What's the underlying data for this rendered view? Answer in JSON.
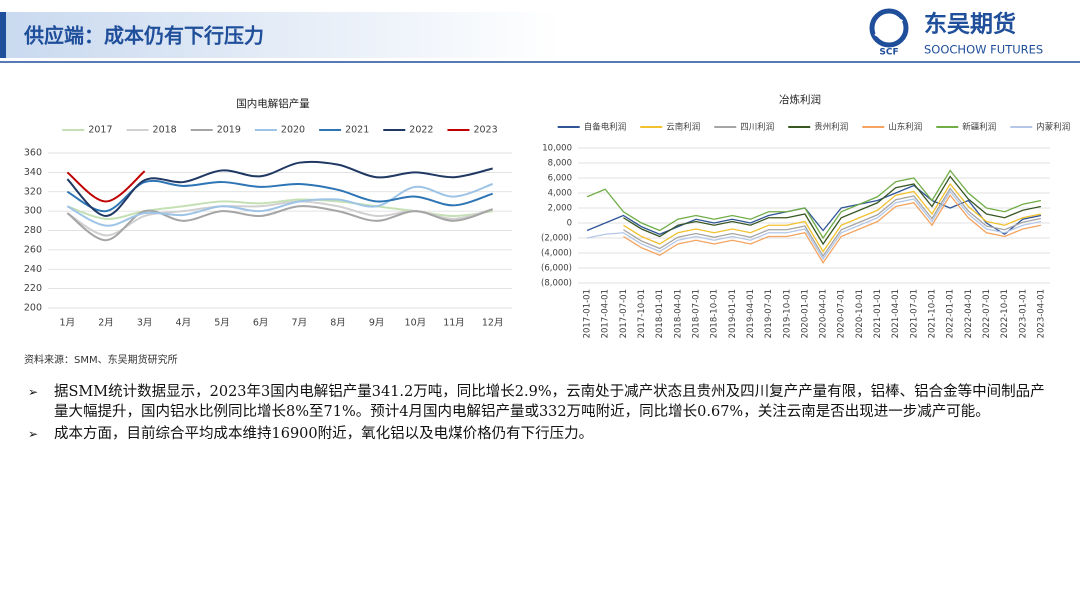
{
  "header": {
    "title": "供应端：成本仍有下行压力",
    "logo_cn": "东吴期货",
    "logo_en": "SOOCHOW FUTURES",
    "logo_mark": "SCF"
  },
  "chart_data": [
    {
      "type": "line",
      "title": "国内电解铝产量",
      "smooth": true,
      "grid": true,
      "legend": "top",
      "categories": [
        "1月",
        "2月",
        "3月",
        "4月",
        "5月",
        "6月",
        "7月",
        "8月",
        "9月",
        "10月",
        "11月",
        "12月"
      ],
      "ylim": [
        200,
        360
      ],
      "yticks": [
        200,
        220,
        240,
        260,
        280,
        300,
        320,
        340,
        360
      ],
      "series": [
        {
          "name": "2017",
          "color": "#c5e0b4",
          "values": [
            305,
            292,
            300,
            305,
            310,
            308,
            312,
            310,
            305,
            300,
            295,
            300
          ]
        },
        {
          "name": "2018",
          "color": "#d0d0d0",
          "values": [
            298,
            275,
            295,
            300,
            305,
            305,
            310,
            305,
            295,
            300,
            292,
            302
          ]
        },
        {
          "name": "2019",
          "color": "#a5a5a5",
          "values": [
            298,
            270,
            300,
            290,
            300,
            295,
            305,
            300,
            290,
            300,
            290,
            302
          ]
        },
        {
          "name": "2020",
          "color": "#9dc3e6",
          "values": [
            305,
            285,
            298,
            296,
            305,
            300,
            310,
            312,
            305,
            325,
            315,
            328
          ]
        },
        {
          "name": "2021",
          "color": "#2e75b6",
          "values": [
            320,
            300,
            330,
            326,
            330,
            325,
            328,
            322,
            310,
            315,
            306,
            318
          ]
        },
        {
          "name": "2022",
          "color": "#203864",
          "values": [
            333,
            295,
            332,
            330,
            342,
            336,
            350,
            348,
            335,
            340,
            335,
            344
          ]
        },
        {
          "name": "2023",
          "color": "#c00000",
          "values": [
            340,
            310,
            341.2,
            null,
            null,
            null,
            null,
            null,
            null,
            null,
            null,
            null
          ]
        }
      ]
    },
    {
      "type": "line",
      "title": "冶炼利润",
      "smooth": false,
      "grid": true,
      "legend": "top",
      "categories": [
        "2017-01-01",
        "2017-04-01",
        "2017-07-01",
        "2017-10-01",
        "2018-01-01",
        "2018-04-01",
        "2018-07-01",
        "2018-10-01",
        "2019-01-01",
        "2019-04-01",
        "2019-07-01",
        "2019-10-01",
        "2020-01-01",
        "2020-04-01",
        "2020-07-01",
        "2020-10-01",
        "2021-01-01",
        "2021-04-01",
        "2021-07-01",
        "2021-10-01",
        "2022-01-01",
        "2022-04-01",
        "2022-07-01",
        "2022-10-01",
        "2023-01-01",
        "2023-04-01"
      ],
      "ylim": [
        -8000,
        10000
      ],
      "yticks": [
        {
          "value": -8000,
          "label": "(8,000)"
        },
        {
          "value": -6000,
          "label": "(6,000)"
        },
        {
          "value": -4000,
          "label": "(4,000)"
        },
        {
          "value": -2000,
          "label": "(2,000)"
        },
        0,
        {
          "value": 2000,
          "label": "2,000"
        },
        {
          "value": 4000,
          "label": "4,000"
        },
        {
          "value": 6000,
          "label": "6,000"
        },
        {
          "value": 8000,
          "label": "8,000"
        },
        {
          "value": 10000,
          "label": "10,000"
        }
      ],
      "series": [
        {
          "name": "自备电利润",
          "color": "#2f5597",
          "values": [
            -1000,
            0,
            1000,
            -500,
            -1500,
            -500,
            500,
            0,
            500,
            0,
            1000,
            1500,
            2000,
            -1000,
            2000,
            2500,
            3000,
            4000,
            5000,
            3000,
            2000,
            3000,
            0,
            -1500,
            500,
            1000
          ]
        },
        {
          "name": "云南利润",
          "color": "#f2c12e",
          "values": [
            null,
            null,
            -300,
            -1800,
            -2800,
            -1300,
            -800,
            -1300,
            -800,
            -1300,
            -300,
            -300,
            200,
            -3800,
            -300,
            700,
            1700,
            3700,
            4200,
            1200,
            5200,
            2200,
            200,
            -300,
            700,
            1200
          ]
        },
        {
          "name": "四川利润",
          "color": "#a5a5a5",
          "values": [
            null,
            null,
            -900,
            -2400,
            -3400,
            -1900,
            -1400,
            -1900,
            -1400,
            -1900,
            -900,
            -900,
            -400,
            -4400,
            -900,
            100,
            1100,
            3100,
            3600,
            600,
            4600,
            1600,
            -400,
            -900,
            100,
            600
          ]
        },
        {
          "name": "贵州利润",
          "color": "#385723",
          "values": [
            null,
            null,
            700,
            -800,
            -1800,
            -300,
            200,
            -300,
            200,
            -300,
            700,
            700,
            1200,
            -2800,
            700,
            1700,
            2700,
            4700,
            5200,
            2200,
            6200,
            3200,
            1200,
            700,
            1700,
            2200
          ]
        },
        {
          "name": "山东利润",
          "color": "#f4a460",
          "values": [
            null,
            null,
            -1800,
            -3300,
            -4300,
            -2800,
            -2300,
            -2800,
            -2300,
            -2800,
            -1800,
            -1800,
            -1300,
            -5300,
            -1800,
            -800,
            200,
            2200,
            2700,
            -300,
            3700,
            700,
            -1300,
            -1800,
            -800,
            -300
          ]
        },
        {
          "name": "新疆利润",
          "color": "#70ad47",
          "values": [
            3500,
            4500,
            1500,
            0,
            -1000,
            500,
            1000,
            500,
            1000,
            500,
            1500,
            1500,
            2000,
            -2000,
            1500,
            2500,
            3500,
            5500,
            6000,
            3000,
            7000,
            4000,
            2000,
            1500,
            2500,
            3000
          ]
        },
        {
          "name": "内蒙利润",
          "color": "#b4c7e7",
          "values": [
            -2000,
            -1500,
            -1300,
            -2800,
            -3800,
            -2300,
            -1800,
            -2300,
            -1800,
            -2300,
            -1300,
            -1300,
            -800,
            -4800,
            -1300,
            -300,
            700,
            2700,
            3200,
            200,
            4200,
            1200,
            -800,
            -1300,
            -300,
            200
          ]
        }
      ]
    }
  ],
  "source": "资料来源：SMM、东吴期货研究所",
  "bullets": [
    "据SMM统计数据显示，2023年3国内电解铝产量341.2万吨，同比增长2.9%，云南处于减产状态且贵州及四川复产产量有限，铝棒、铝合金等中间制品产量大幅提升，国内铝水比例同比增长8%至71%。预计4月国内电解铝产量或332万吨附近，同比增长0.67%，关注云南是否出现进一步减产可能。",
    "成本方面，目前综合平均成本维持16900附近，氧化铝以及电煤价格仍有下行压力。"
  ]
}
